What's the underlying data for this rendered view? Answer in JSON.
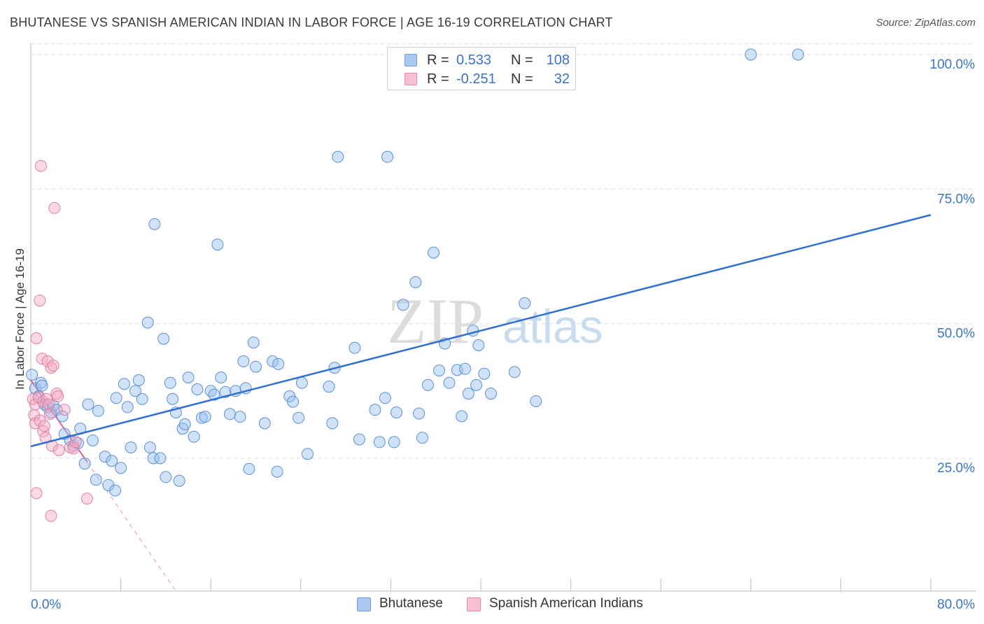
{
  "header": {
    "title": "BHUTANESE VS SPANISH AMERICAN INDIAN IN LABOR FORCE | AGE 16-19 CORRELATION CHART",
    "source": "Source: ZipAtlas.com"
  },
  "watermark": {
    "zip": "ZIP",
    "atlas": "atlas"
  },
  "legend": {
    "series": [
      {
        "label_r": "R =",
        "r": "0.533",
        "label_n": "N =",
        "n": "108",
        "color": "#a8c8f0",
        "border": "#6f9fdc"
      },
      {
        "label_r": "R =",
        "r": "-0.251",
        "label_n": "N =",
        "n": "32",
        "color": "#f8c0d2",
        "border": "#e38aa8"
      }
    ]
  },
  "bottom_legend": {
    "items": [
      {
        "label": "Bhutanese",
        "color": "#a8c8f0",
        "border": "#6f9fdc"
      },
      {
        "label": "Spanish American Indians",
        "color": "#f8c0d2",
        "border": "#e38aa8"
      }
    ]
  },
  "colors": {
    "blue_fill": "rgba(150,190,240,0.45)",
    "blue_stroke": "#5b8fd6",
    "blue_line": "#2f6fcf",
    "pink_fill": "rgba(245,170,195,0.45)",
    "pink_stroke": "#e07f9f",
    "pink_line": "#e0628c",
    "axis_label": "#3b74c7",
    "grid": "#d9d9d9"
  },
  "chart_data": {
    "type": "scatter",
    "title": "BHUTANESE VS SPANISH AMERICAN INDIAN IN LABOR FORCE | AGE 16-19 CORRELATION CHART",
    "xlabel": "",
    "ylabel": "In Labor Force | Age 16-19",
    "xlim": [
      0,
      80
    ],
    "ylim": [
      0,
      102
    ],
    "x_tick_labels": [
      "0.0%",
      "80.0%"
    ],
    "y_ticks": [
      25,
      50,
      75,
      100
    ],
    "y_tick_labels": [
      "25.0%",
      "50.0%",
      "75.0%",
      "100.0%"
    ],
    "grid": true,
    "legend_position": "top-center",
    "series": [
      {
        "name": "Bhutanese",
        "r": 0.533,
        "n": 108,
        "trend": {
          "x": [
            0,
            80
          ],
          "y": [
            27.2,
            70.2
          ]
        },
        "points": [
          [
            0.1,
            40.5
          ],
          [
            0.4,
            38.0
          ],
          [
            0.7,
            36.5
          ],
          [
            0.9,
            39.0
          ],
          [
            1.2,
            35.0
          ],
          [
            1.5,
            34.5
          ],
          [
            1.8,
            33.5
          ],
          [
            2.0,
            34.8
          ],
          [
            2.3,
            34.0
          ],
          [
            2.8,
            32.8
          ],
          [
            3.0,
            29.5
          ],
          [
            3.5,
            28.3
          ],
          [
            3.8,
            27.3
          ],
          [
            4.2,
            27.8
          ],
          [
            4.4,
            30.5
          ],
          [
            4.8,
            24.0
          ],
          [
            5.1,
            35.0
          ],
          [
            5.5,
            28.3
          ],
          [
            5.8,
            21.0
          ],
          [
            6.0,
            33.8
          ],
          [
            6.6,
            25.3
          ],
          [
            6.9,
            20.0
          ],
          [
            7.2,
            24.5
          ],
          [
            7.6,
            36.2
          ],
          [
            7.5,
            19.0
          ],
          [
            8.0,
            23.2
          ],
          [
            8.3,
            38.8
          ],
          [
            8.6,
            34.5
          ],
          [
            8.9,
            27.0
          ],
          [
            9.3,
            37.5
          ],
          [
            9.6,
            39.5
          ],
          [
            9.9,
            36.0
          ],
          [
            10.4,
            50.2
          ],
          [
            10.6,
            27.0
          ],
          [
            10.9,
            25.0
          ],
          [
            11.0,
            68.5
          ],
          [
            11.5,
            25.0
          ],
          [
            11.8,
            47.2
          ],
          [
            12.0,
            21.5
          ],
          [
            12.4,
            39.0
          ],
          [
            12.6,
            36.0
          ],
          [
            12.9,
            33.5
          ],
          [
            13.2,
            20.8
          ],
          [
            13.5,
            30.5
          ],
          [
            13.7,
            31.3
          ],
          [
            14.0,
            40.0
          ],
          [
            14.5,
            29.0
          ],
          [
            14.8,
            37.8
          ],
          [
            15.2,
            32.5
          ],
          [
            15.5,
            32.7
          ],
          [
            16.0,
            37.5
          ],
          [
            16.3,
            36.8
          ],
          [
            16.6,
            64.7
          ],
          [
            16.9,
            40.0
          ],
          [
            17.3,
            37.3
          ],
          [
            17.7,
            33.2
          ],
          [
            18.2,
            37.5
          ],
          [
            18.6,
            32.7
          ],
          [
            18.9,
            43.0
          ],
          [
            19.1,
            38.0
          ],
          [
            19.4,
            23.0
          ],
          [
            19.8,
            46.5
          ],
          [
            20.0,
            42.0
          ],
          [
            20.8,
            31.5
          ],
          [
            21.5,
            43.0
          ],
          [
            21.9,
            22.5
          ],
          [
            22.0,
            42.5
          ],
          [
            23.0,
            36.5
          ],
          [
            23.3,
            35.5
          ],
          [
            23.8,
            32.5
          ],
          [
            24.1,
            39.0
          ],
          [
            24.6,
            25.8
          ],
          [
            26.5,
            38.3
          ],
          [
            26.8,
            31.5
          ],
          [
            27.0,
            41.8
          ],
          [
            27.3,
            81.0
          ],
          [
            28.8,
            45.5
          ],
          [
            29.2,
            28.5
          ],
          [
            30.6,
            34.0
          ],
          [
            31.0,
            28.0
          ],
          [
            31.5,
            36.2
          ],
          [
            31.7,
            81.0
          ],
          [
            32.3,
            28.0
          ],
          [
            32.5,
            33.5
          ],
          [
            33.1,
            53.5
          ],
          [
            34.2,
            57.7
          ],
          [
            34.5,
            33.3
          ],
          [
            34.8,
            28.8
          ],
          [
            35.3,
            38.6
          ],
          [
            35.8,
            63.2
          ],
          [
            36.3,
            41.3
          ],
          [
            36.8,
            46.3
          ],
          [
            37.2,
            39.0
          ],
          [
            37.9,
            41.4
          ],
          [
            38.3,
            32.8
          ],
          [
            38.6,
            41.6
          ],
          [
            38.9,
            37.0
          ],
          [
            39.3,
            48.7
          ],
          [
            39.6,
            38.6
          ],
          [
            39.8,
            46.0
          ],
          [
            40.3,
            40.7
          ],
          [
            40.9,
            37.0
          ],
          [
            43.0,
            41.0
          ],
          [
            43.9,
            53.8
          ],
          [
            44.9,
            35.6
          ],
          [
            64.0,
            100.0
          ],
          [
            68.2,
            100.0
          ],
          [
            1.0,
            38.5
          ]
        ]
      },
      {
        "name": "Spanish American Indians",
        "r": -0.251,
        "n": 32,
        "trend": {
          "x": [
            0,
            13.0
          ],
          "y": [
            39.5,
            0
          ]
        },
        "trend_solid_until_x": 5.0,
        "points": [
          [
            0.2,
            36.0
          ],
          [
            0.3,
            33.0
          ],
          [
            0.4,
            35.0
          ],
          [
            0.4,
            31.5
          ],
          [
            0.5,
            47.3
          ],
          [
            0.5,
            18.5
          ],
          [
            0.7,
            36.3
          ],
          [
            0.8,
            32.0
          ],
          [
            0.8,
            54.3
          ],
          [
            0.9,
            79.3
          ],
          [
            1.0,
            43.5
          ],
          [
            1.1,
            35.5
          ],
          [
            1.1,
            30.0
          ],
          [
            1.2,
            31.0
          ],
          [
            1.3,
            28.8
          ],
          [
            1.4,
            36.0
          ],
          [
            1.5,
            43.0
          ],
          [
            1.6,
            35.0
          ],
          [
            1.7,
            33.2
          ],
          [
            1.8,
            14.3
          ],
          [
            1.8,
            41.8
          ],
          [
            1.9,
            27.3
          ],
          [
            2.0,
            42.2
          ],
          [
            2.1,
            71.5
          ],
          [
            2.3,
            37.0
          ],
          [
            2.4,
            36.5
          ],
          [
            2.5,
            26.5
          ],
          [
            3.0,
            34.0
          ],
          [
            3.5,
            27.0
          ],
          [
            3.8,
            26.8
          ],
          [
            4.0,
            28.0
          ],
          [
            5.0,
            17.5
          ]
        ]
      }
    ]
  }
}
